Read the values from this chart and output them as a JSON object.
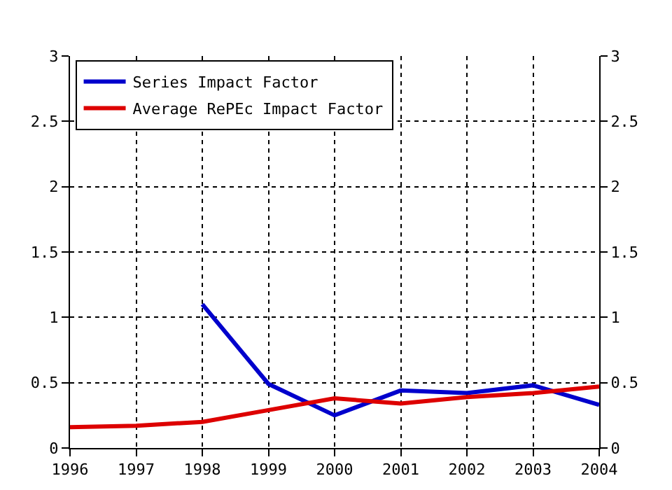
{
  "chart_data": {
    "type": "line",
    "x": [
      1996,
      1997,
      1998,
      1999,
      2000,
      2001,
      2002,
      2003,
      2004
    ],
    "series": [
      {
        "name": "Series Impact Factor",
        "color": "#0000cc",
        "values": [
          null,
          null,
          1.1,
          0.49,
          0.25,
          0.44,
          0.42,
          0.48,
          0.33
        ]
      },
      {
        "name": "Average RePEc Impact Factor",
        "color": "#dd0000",
        "values": [
          0.16,
          0.17,
          0.2,
          0.29,
          0.38,
          0.34,
          0.39,
          0.42,
          0.47
        ]
      }
    ],
    "xlim": [
      1996,
      2004
    ],
    "xticks": [
      1996,
      1997,
      1998,
      1999,
      2000,
      2001,
      2002,
      2003,
      2004
    ],
    "ylim": [
      0,
      3
    ],
    "yticks": [
      0,
      0.5,
      1,
      1.5,
      2,
      2.5,
      3
    ],
    "y2lim": [
      0,
      3
    ],
    "y2ticks": [
      0,
      0.5,
      1,
      1.5,
      2,
      2.5,
      3
    ],
    "grid": true,
    "legend": "top left",
    "marker": "none",
    "line_style": "solid"
  }
}
